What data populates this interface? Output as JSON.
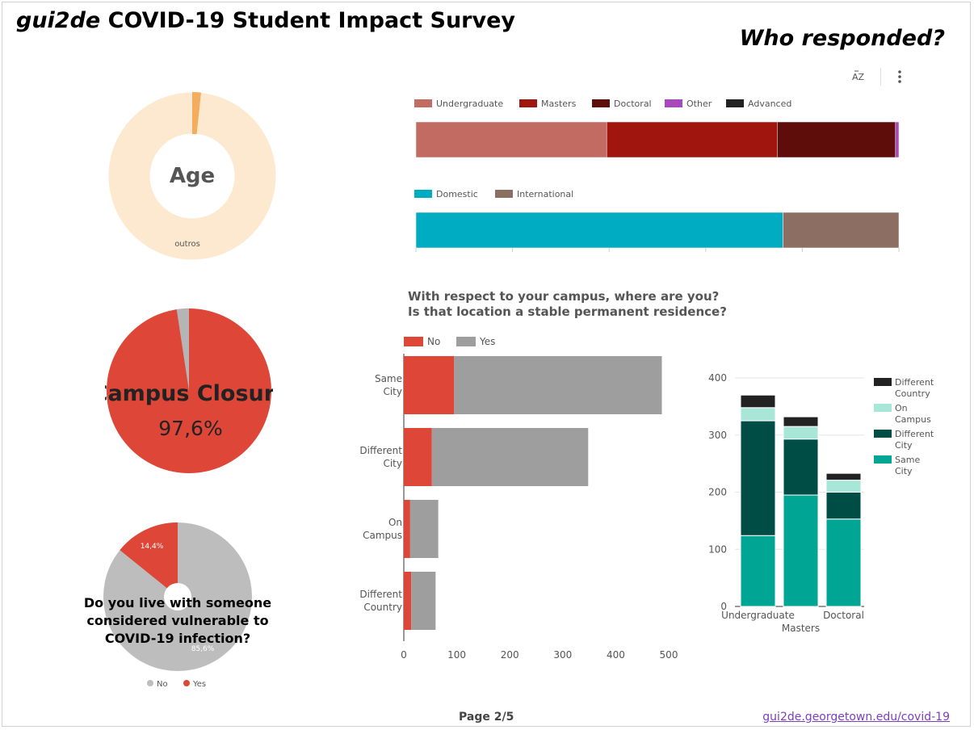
{
  "header": {
    "title_italic": "gui2de",
    "title_rest": "COVID-19 Student Impact Survey",
    "subtitle": "Who responded?"
  },
  "toolbar": {
    "sort_icon": "sort-az-icon",
    "more_icon": "more-vert-icon"
  },
  "footer": {
    "page": "Page 2/5",
    "link": "gui2de.georgetown.edu/covid-19"
  },
  "age_donut": {
    "center_label": "Age",
    "slice_label": "outros",
    "color": "#fde9cf",
    "accent": "#f2a14a"
  },
  "campus_pie": {
    "label": "Campus Closure",
    "value": "97,6%",
    "color_main": "#de4638",
    "color_rest": "#b5b5b5"
  },
  "vulnerable_donut": {
    "question": "Do you live with someone considered vulnerable to COVID-19 infection?",
    "legend_no": "No",
    "legend_yes": "Yes",
    "label_yes": "14,4%",
    "label_no": "85,6%",
    "color_no": "#bdbdbd",
    "color_yes": "#de4638"
  },
  "question": {
    "line1": "With respect to your campus, where are you?",
    "line2": "Is that location a stable permanent residence?"
  },
  "chart_data": [
    {
      "type": "bar",
      "orientation": "horizontal-stacked-100",
      "series": [
        {
          "name": "Undergraduate",
          "values": [
            39.5
          ],
          "color": "#c26b63"
        },
        {
          "name": "Masters",
          "values": [
            35.3
          ],
          "color": "#a0160f"
        },
        {
          "name": "Doctoral",
          "values": [
            24.5
          ],
          "color": "#5e0d0b"
        },
        {
          "name": "Other",
          "values": [
            0.7
          ],
          "color": "#ab47bc"
        },
        {
          "name": "Advanced",
          "values": [
            0
          ],
          "color": "#222222"
        }
      ]
    },
    {
      "type": "bar",
      "orientation": "horizontal-stacked-100",
      "series": [
        {
          "name": "Domestic",
          "values": [
            76
          ],
          "color": "#00acc1"
        },
        {
          "name": "International",
          "values": [
            24
          ],
          "color": "#8d6e63"
        }
      ]
    },
    {
      "type": "bar",
      "orientation": "horizontal-stacked",
      "categories": [
        "Same City",
        "Different City",
        "On Campus",
        "Different Country"
      ],
      "series": [
        {
          "name": "No",
          "values": [
            95,
            53,
            12,
            14
          ],
          "color": "#de4638"
        },
        {
          "name": "Yes",
          "values": [
            392,
            295,
            53,
            46
          ],
          "color": "#9e9e9e"
        }
      ],
      "xlim": [
        0,
        500
      ],
      "xticks": [
        "0",
        "100",
        "200",
        "300",
        "400",
        "500"
      ]
    },
    {
      "type": "bar",
      "orientation": "vertical-stacked",
      "categories": [
        "Undergraduate",
        "Masters",
        "Doctoral"
      ],
      "series": [
        {
          "name": "Same City",
          "values": [
            124,
            195,
            153
          ],
          "color": "#00a693"
        },
        {
          "name": "Different City",
          "values": [
            201,
            98,
            47
          ],
          "color": "#004d45"
        },
        {
          "name": "On Campus",
          "values": [
            23,
            22,
            21
          ],
          "color": "#a8e6d8"
        },
        {
          "name": "Different Country",
          "values": [
            22,
            17,
            12
          ],
          "color": "#222222"
        }
      ],
      "legend_order": [
        "Different Country",
        "On Campus",
        "Different City",
        "Same City"
      ],
      "legend_text": [
        [
          "Different",
          "Country"
        ],
        [
          "On",
          "Campus"
        ],
        [
          "Different",
          "City"
        ],
        [
          "Same",
          "City"
        ]
      ],
      "category_lines": [
        [
          "Undergraduate"
        ],
        [
          "Masters"
        ],
        [
          "Doctoral"
        ]
      ],
      "ylim": [
        0,
        400
      ],
      "yticks": [
        "0",
        "100",
        "200",
        "300",
        "400"
      ]
    }
  ]
}
